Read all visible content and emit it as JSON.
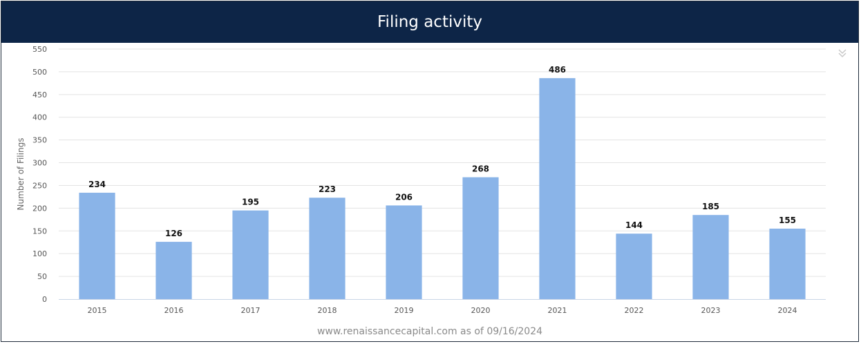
{
  "header": {
    "title": "Filing activity"
  },
  "footer": {
    "source": "www.renaissancecapital.com as of 09/16/2024"
  },
  "colors": {
    "header_bg": "#0d2547",
    "bar": "#8ab4e8",
    "grid": "#e3e3e3"
  },
  "icons": {
    "collapse": "double-chevron-down-icon"
  },
  "chart_data": {
    "type": "bar",
    "title": "Filing activity",
    "xlabel": "",
    "ylabel": "Number of Filings",
    "categories": [
      "2015",
      "2016",
      "2017",
      "2018",
      "2019",
      "2020",
      "2021",
      "2022",
      "2023",
      "2024"
    ],
    "values": [
      234,
      126,
      195,
      223,
      206,
      268,
      486,
      144,
      185,
      155
    ],
    "ylim": [
      0,
      550
    ],
    "yticks": [
      0,
      50,
      100,
      150,
      200,
      250,
      300,
      350,
      400,
      450,
      500,
      550
    ],
    "grid": true,
    "data_labels": true,
    "legend": "none"
  }
}
